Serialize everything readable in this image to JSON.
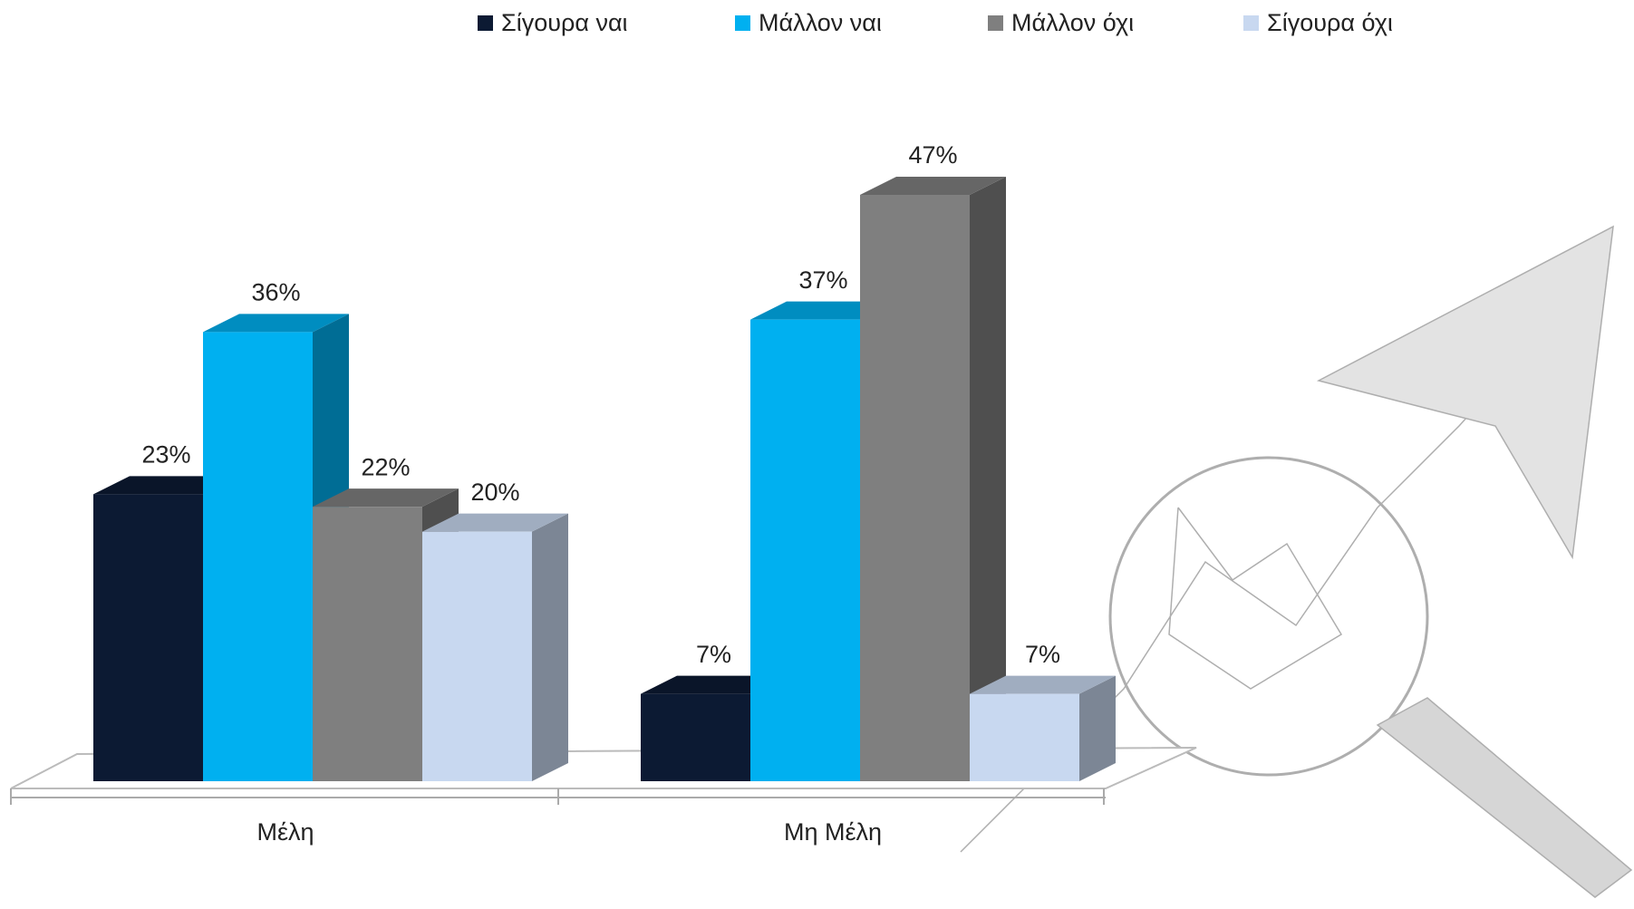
{
  "chart_data": {
    "type": "bar3d",
    "categories": [
      "Μέλη",
      "Μη Μέλη"
    ],
    "series": [
      {
        "name": "Σίγουρα ναι",
        "color": "#0c1a33",
        "values": [
          23,
          7
        ],
        "value_labels": [
          "23%",
          "7%"
        ]
      },
      {
        "name": "Μάλλον ναι",
        "color": "#00b0f0",
        "values": [
          36,
          37
        ],
        "value_labels": [
          "36%",
          "37%"
        ]
      },
      {
        "name": "Μάλλον όχι",
        "color": "#7f7f7f",
        "values": [
          22,
          47
        ],
        "value_labels": [
          "22%",
          "47%"
        ]
      },
      {
        "name": "Σίγουρα όχι",
        "color": "#c8d8f0",
        "values": [
          20,
          7
        ],
        "value_labels": [
          "20%",
          "7%"
        ]
      }
    ],
    "legend": "top"
  }
}
